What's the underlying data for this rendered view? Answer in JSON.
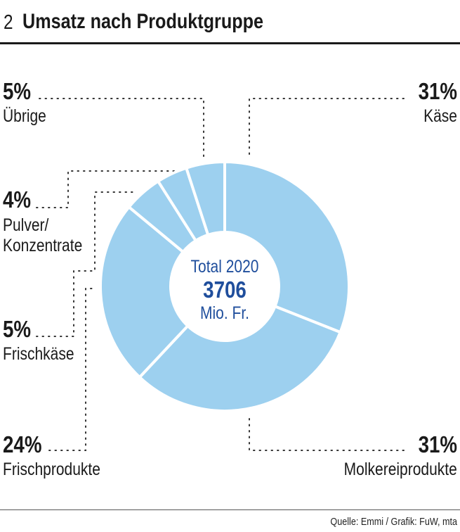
{
  "header": {
    "number": "2",
    "title": "Umsatz nach Produktgruppe"
  },
  "source": "Quelle: Emmi / Grafik: FuW, mta",
  "colors": {
    "slice": "#9dd0ef",
    "center_text": "#1f4e9c",
    "separator": "#ffffff"
  },
  "chart_data": {
    "type": "pie",
    "variant": "donut",
    "title": "Umsatz nach Produktgruppe",
    "center_label": {
      "line1": "Total 2020",
      "value": "3706",
      "unit": "Mio. Fr."
    },
    "slices": [
      {
        "label": "Käse",
        "value": 31,
        "pct_label": "31%"
      },
      {
        "label": "Molkereiprodukte",
        "value": 31,
        "pct_label": "31%"
      },
      {
        "label": "Frischprodukte",
        "value": 24,
        "pct_label": "24%"
      },
      {
        "label": "Frischkäse",
        "value": 5,
        "pct_label": "5%"
      },
      {
        "label": "Pulver/ Konzentrate",
        "value": 4,
        "pct_label": "4%"
      },
      {
        "label": "Übrige",
        "value": 5,
        "pct_label": "5%"
      }
    ]
  }
}
